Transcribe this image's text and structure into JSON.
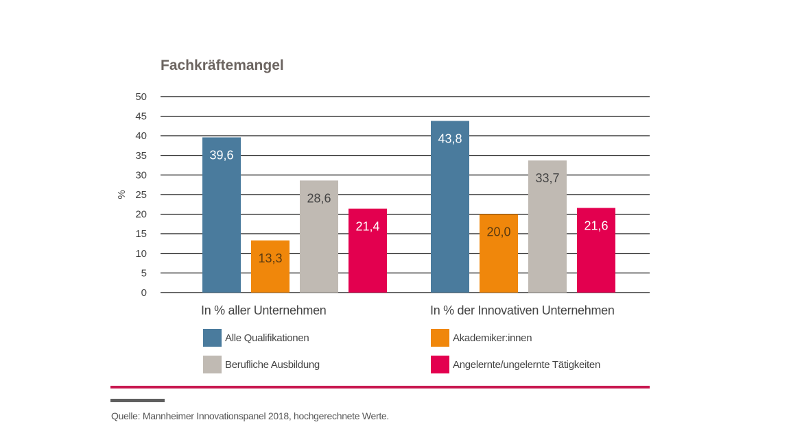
{
  "chart_data": {
    "type": "bar",
    "title": "Fachkräftemangel",
    "xlabel": "",
    "ylabel": "%",
    "ylim": [
      0,
      50
    ],
    "yticks": [
      "0",
      "5",
      "10",
      "15",
      "20",
      "25",
      "30",
      "35",
      "40",
      "45",
      "50"
    ],
    "ytick_values": [
      0,
      5,
      10,
      15,
      20,
      25,
      30,
      35,
      40,
      45,
      50
    ],
    "grid": true,
    "legend_position": "bottom",
    "categories": [
      "In % aller Unternehmen",
      "In % der Innovativen Unternehmen"
    ],
    "series": [
      {
        "name": "Alle Qualifikationen",
        "color": "#4a7b9d",
        "label_color": "#ffffff",
        "values": [
          39.6,
          43.8
        ],
        "labels": [
          "39,6",
          "43,8"
        ]
      },
      {
        "name": "Akademiker:innen",
        "color": "#f0870b",
        "label_color": "#5a3a10",
        "values": [
          13.3,
          20.0
        ],
        "labels": [
          "13,3",
          "20,0"
        ]
      },
      {
        "name": "Berufliche Ausbildung",
        "color": "#c0bab3",
        "label_color": "#444444",
        "values": [
          28.6,
          33.7
        ],
        "labels": [
          "28,6",
          "33,7"
        ]
      },
      {
        "name": "Angelernte/ungelernte Tätigkeiten",
        "color": "#e3004f",
        "label_color": "#ffffff",
        "values": [
          21.4,
          21.6
        ],
        "labels": [
          "21,4",
          "21,6"
        ]
      }
    ],
    "legend_order": [
      0,
      1,
      2,
      3
    ]
  },
  "source": "Quelle: Mannheimer Innovationspanel 2018, hochgerechnete Werte.",
  "colors": {
    "title": "#6b6460",
    "accent_rule": "#c8174f",
    "gray_rule": "#5f5f5f"
  }
}
